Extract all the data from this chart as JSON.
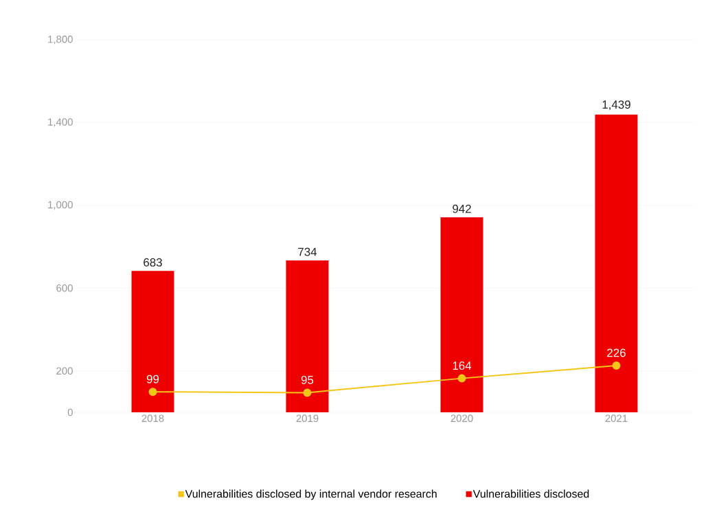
{
  "chart_data": {
    "type": "bar",
    "categories": [
      "2018",
      "2019",
      "2020",
      "2021"
    ],
    "series": [
      {
        "name": "Vulnerabilities disclosed by internal vendor research",
        "type": "line",
        "color": "#f5c518",
        "values": [
          99,
          95,
          164,
          226
        ],
        "value_labels": [
          "99",
          "95",
          "164",
          "226"
        ]
      },
      {
        "name": "Vulnerabilities disclosed",
        "color": "#ee0000",
        "values": [
          683,
          734,
          942,
          1439
        ],
        "value_labels": [
          "683",
          "734",
          "942",
          "1,439"
        ]
      }
    ],
    "ylim": [
      0,
      1800
    ],
    "yticks": [
      0,
      200,
      600,
      {
        "value": 1000,
        "label": "1,000"
      },
      {
        "value": 1400,
        "label": "1,400"
      },
      {
        "value": 1800,
        "label": "1,800"
      }
    ],
    "grid": "y",
    "legend": "bottom",
    "marker": "circle"
  }
}
